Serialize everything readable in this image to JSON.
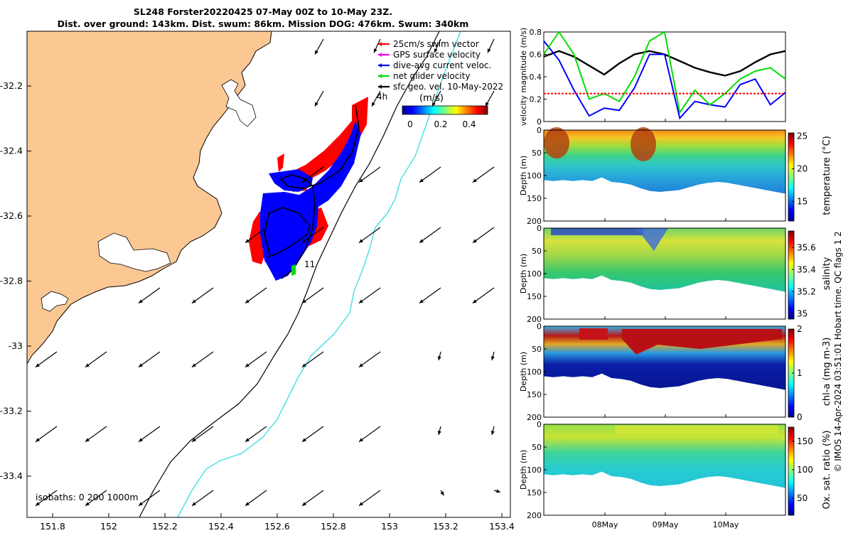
{
  "header": {
    "title_line1": "SL248 Forster20220425 07-May 00Z to 10-May 23Z.",
    "title_line2": "Dist. over ground: 143km. Dist. swum: 86km. Mission DOG: 476km. Swum: 340km"
  },
  "map": {
    "x_ticks": [
      "151.8",
      "152",
      "152.2",
      "152.4",
      "152.6",
      "152.8",
      "153",
      "153.2",
      "153.4"
    ],
    "y_ticks": [
      "-32.2",
      "-32.4",
      "-32.6",
      "-32.8",
      "-33",
      "-33.2",
      "-33.4"
    ],
    "legend": [
      {
        "label": "25cm/s swim vector",
        "color": "#ff0000"
      },
      {
        "label": "GPS surface velocity",
        "color": "#ff00ff"
      },
      {
        "label": "dive-avg current veloc.",
        "color": "#0000ff"
      },
      {
        "label": "net glider velocity",
        "color": "#00dd00"
      },
      {
        "label": "sfc geo. vel. 10-May-2022",
        "color": "#000000"
      }
    ],
    "colorbar_unit": "(m/s)",
    "colorbar_ticks": [
      "0",
      "0.2",
      "0.4"
    ],
    "annotation_4h": "4h",
    "annotation_11": "11",
    "isobaths_label": "isobaths: 0   200  1000m",
    "colors": {
      "land": "#fbc893",
      "track_swim": "#ff0000",
      "track_current": "#0000ff",
      "isobath_200": "#000000",
      "isobath_1000": "#40e0e0"
    }
  },
  "chart_data": [
    {
      "type": "line",
      "ylabel": "velocity magnitude (m/s)",
      "ylim": [
        0,
        0.8
      ],
      "y_ticks": [
        "0.8",
        "0.6",
        "0.4",
        "0.2",
        "0"
      ],
      "x": [
        "07-May 00Z",
        "07-May 06Z",
        "07-May 12Z",
        "07-May 18Z",
        "08-May 00Z",
        "08-May 06Z",
        "08-May 12Z",
        "08-May 18Z",
        "09-May 00Z",
        "09-May 06Z",
        "09-May 12Z",
        "09-May 18Z",
        "10-May 00Z",
        "10-May 06Z",
        "10-May 12Z",
        "10-May 18Z",
        "10-May 23Z"
      ],
      "series": [
        {
          "color": "#000000",
          "values": [
            0.58,
            0.63,
            0.58,
            0.5,
            0.42,
            0.52,
            0.6,
            0.63,
            0.6,
            0.54,
            0.48,
            0.44,
            0.41,
            0.45,
            0.53,
            0.6,
            0.63
          ]
        },
        {
          "color": "#0000ff",
          "values": [
            0.72,
            0.55,
            0.28,
            0.05,
            0.12,
            0.1,
            0.3,
            0.6,
            0.6,
            0.03,
            0.18,
            0.15,
            0.13,
            0.33,
            0.38,
            0.15,
            0.26
          ]
        },
        {
          "color": "#00dd00",
          "values": [
            0.6,
            0.8,
            0.6,
            0.2,
            0.25,
            0.18,
            0.4,
            0.72,
            0.8,
            0.08,
            0.28,
            0.15,
            0.25,
            0.38,
            0.45,
            0.48,
            0.38
          ]
        },
        {
          "color": "#ff0000",
          "values": [
            0.25,
            0.25,
            0.25,
            0.25,
            0.25,
            0.25,
            0.25,
            0.25,
            0.25,
            0.25,
            0.25,
            0.25,
            0.25,
            0.25,
            0.25,
            0.25,
            0.25
          ]
        }
      ]
    },
    {
      "type": "heatmap",
      "ylabel": "Depth (m)",
      "y_ticks": [
        "0",
        "50",
        "100",
        "150",
        "200"
      ],
      "colorbar_label": "temperature (°C)",
      "colorbar_ticks": [
        "25",
        "20",
        "15"
      ],
      "clim": [
        12,
        25.5
      ]
    },
    {
      "type": "heatmap",
      "ylabel": "Depth (m)",
      "y_ticks": [
        "0",
        "50",
        "100",
        "150",
        "200"
      ],
      "colorbar_label": "salinity",
      "colorbar_ticks": [
        "35.6",
        "35.4",
        "35.2",
        "35"
      ],
      "clim": [
        34.95,
        35.75
      ]
    },
    {
      "type": "heatmap",
      "ylabel": "Depth (m)",
      "y_ticks": [
        "0",
        "50",
        "100",
        "150",
        "200"
      ],
      "colorbar_label": "chl-a (mg m-3)",
      "colorbar_ticks": [
        "2",
        "1",
        "0"
      ],
      "clim": [
        0,
        2
      ]
    },
    {
      "type": "heatmap",
      "ylabel": "Depth (m)",
      "y_ticks": [
        "0",
        "50",
        "100",
        "150",
        "200"
      ],
      "colorbar_label": "Ox. sat. ratio (%)",
      "colorbar_ticks": [
        "150",
        "100",
        "50"
      ],
      "clim": [
        20,
        175
      ],
      "x_ticks": [
        "08May",
        "09May",
        "10May"
      ]
    }
  ],
  "side_note": "© IMOS 14-Apr-2024 03:51:01 Hobart time. QC flags 1  2"
}
